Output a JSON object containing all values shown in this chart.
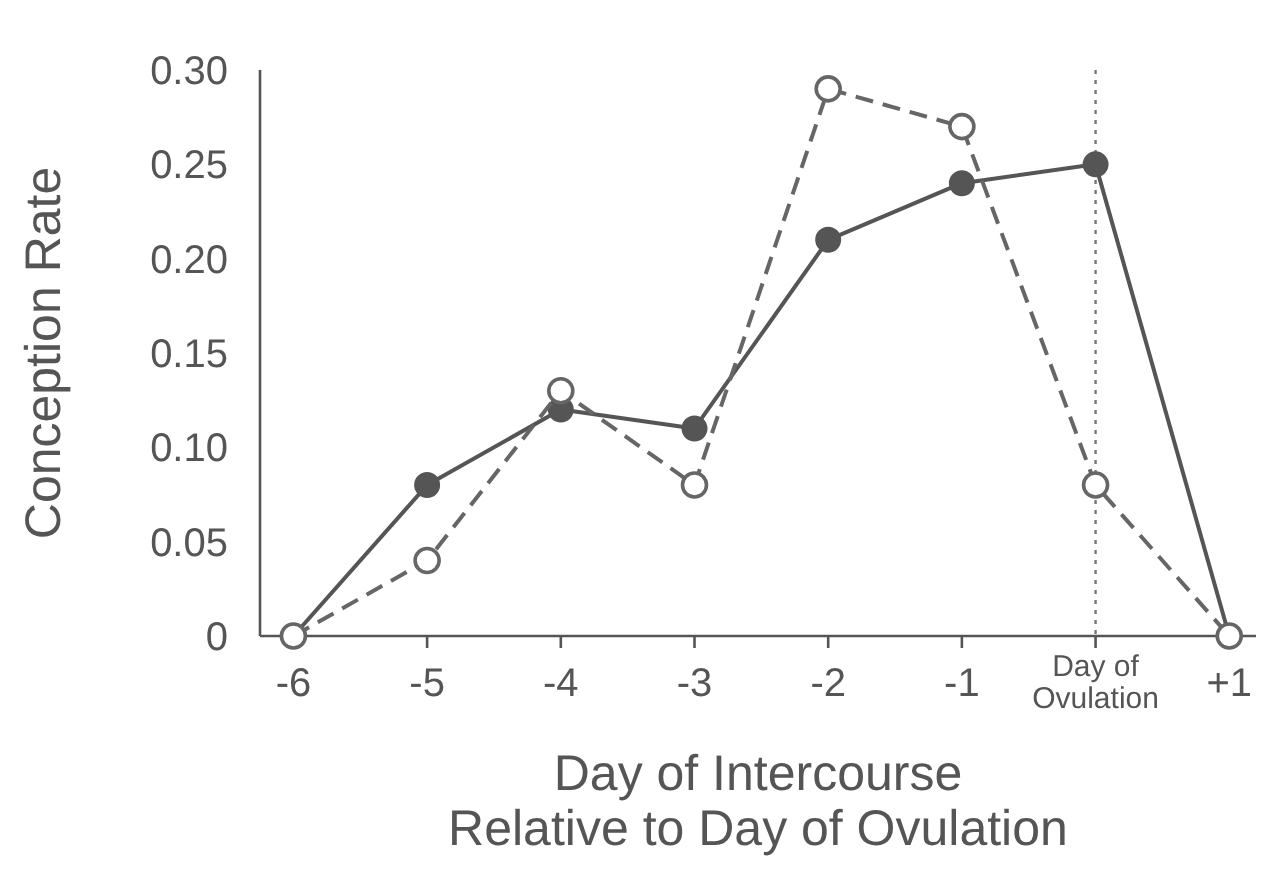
{
  "chart_data": {
    "type": "line",
    "xlabel": "Day of Intercourse\nRelative to Day of Ovulation",
    "ylabel": "Conception Rate",
    "x": [
      -6,
      -5,
      -4,
      -3,
      -2,
      -1,
      0,
      1
    ],
    "series": [
      {
        "color": "#555555",
        "values": [
          0,
          0.08,
          0.12,
          0.11,
          0.21,
          0.24,
          0.25,
          0
        ],
        "marker": "circle",
        "line_style": "solid"
      },
      {
        "color": "#666666",
        "values": [
          0,
          0.04,
          0.13,
          0.08,
          0.29,
          0.27,
          0.08,
          0
        ],
        "marker": "circle",
        "line_style": "dashed"
      }
    ],
    "xlim": [
      -6.25,
      1.2
    ],
    "xticks": [
      -6,
      -5,
      -4,
      -3,
      -2,
      -1,
      {
        "value": 0,
        "label": "Day of\nOvulation"
      },
      {
        "value": 1,
        "label": "+1"
      }
    ],
    "ylim": [
      0,
      0.3
    ],
    "yticks": [
      0,
      0.05,
      {
        "value": 0.1,
        "label": "0.10"
      },
      0.15,
      {
        "value": 0.2,
        "label": "0.20"
      },
      0.25,
      {
        "value": 0.3,
        "label": "0.30"
      }
    ],
    "ref_lines": [
      {
        "axis": "x",
        "value": 0,
        "color": "#777777",
        "line_style": "dotted"
      }
    ],
    "grid": false
  }
}
